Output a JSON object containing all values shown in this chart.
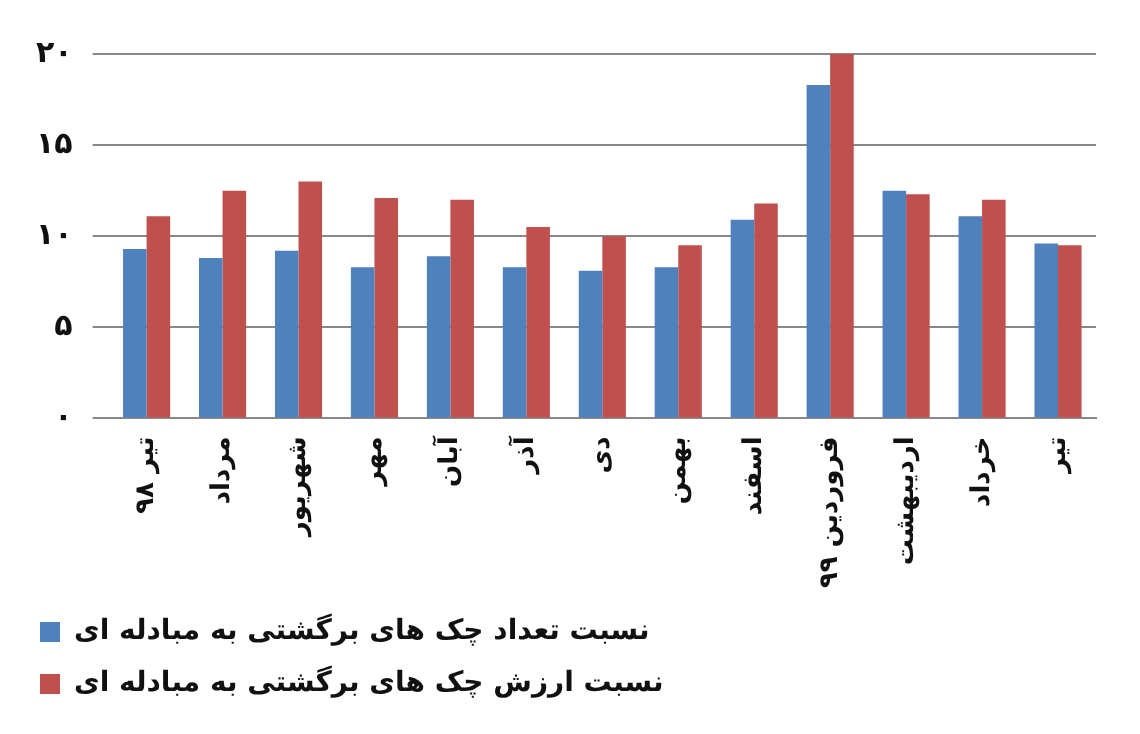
{
  "chart_data": {
    "type": "bar",
    "categories": [
      "تیر ۹۸",
      "مرداد",
      "شهریور",
      "مهر",
      "آبان",
      "آذر",
      "دی",
      "بهمن",
      "اسفند",
      "فروردین ۹۹",
      "اردیبهشت",
      "خرداد",
      "تیر"
    ],
    "series": [
      {
        "name": "نسبت تعداد چک های برگشتی به مبادله ای",
        "color": "#4f81bd",
        "values": [
          9.3,
          8.8,
          9.2,
          8.3,
          8.9,
          8.3,
          8.1,
          8.3,
          10.9,
          18.3,
          12.5,
          11.1,
          9.6
        ]
      },
      {
        "name": "نسبت ارزش چک های برگشتی به مبادله ای",
        "color": "#c0504d",
        "values": [
          11.1,
          12.5,
          13.0,
          12.1,
          12.0,
          10.5,
          10.0,
          9.5,
          11.8,
          20.0,
          12.3,
          12.0,
          9.5
        ]
      }
    ],
    "ylim": [
      0,
      20
    ],
    "yticks": [
      {
        "value": 0,
        "label": "۰"
      },
      {
        "value": 5,
        "label": "۵"
      },
      {
        "value": 10,
        "label": "۱۰"
      },
      {
        "value": 15,
        "label": "۱۵"
      },
      {
        "value": 20,
        "label": "۲۰"
      }
    ],
    "grid": "y",
    "legend": "bottom"
  }
}
